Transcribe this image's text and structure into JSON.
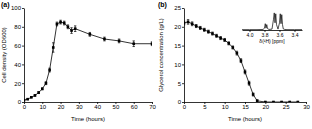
{
  "chart_data": [
    {
      "type": "line",
      "title": "(a)",
      "x_label": "Time (hours)",
      "y_label": "Cell density (OD600)",
      "x": [
        0,
        2,
        4,
        6,
        8,
        10,
        12,
        14,
        16,
        18,
        20,
        22,
        24,
        26,
        28,
        36,
        44,
        52,
        60,
        70
      ],
      "values": [
        2,
        3,
        5,
        7,
        10,
        14,
        20,
        34,
        58,
        83,
        85,
        84,
        80,
        76,
        78,
        72,
        67,
        65,
        62,
        62
      ],
      "errors": [
        0.5,
        0.5,
        0.5,
        0.8,
        1,
        1,
        1.5,
        2,
        5,
        2,
        2,
        2,
        2,
        3,
        3,
        2,
        2,
        2,
        3,
        2
      ],
      "xlim": [
        0,
        70
      ],
      "xticks": [
        0,
        10,
        20,
        30,
        40,
        50,
        60,
        70
      ],
      "ylim": [
        0,
        100
      ],
      "yticks": [
        0,
        20,
        40,
        60,
        80,
        100
      ],
      "color": "#000000",
      "marker": "square",
      "line_style": "solid"
    },
    {
      "type": "line",
      "title": "(b)",
      "x_label": "Time (hours)",
      "y_label": "Glycerol concentration (g/L)",
      "x": [
        0,
        1,
        2,
        3,
        4,
        5,
        6,
        7,
        8,
        9,
        10,
        11,
        12,
        13,
        14,
        15,
        16,
        17,
        18,
        20,
        22,
        24,
        26,
        28
      ],
      "values": [
        21,
        21.3,
        20.8,
        20.2,
        19.7,
        19.2,
        18.7,
        18.2,
        17.6,
        17.0,
        16.5,
        15.6,
        14.5,
        13.0,
        11.0,
        8.0,
        5.0,
        2.0,
        0.3,
        0,
        0,
        0,
        0,
        0
      ],
      "errors": [
        0.5,
        0.6,
        0.5,
        0.4,
        0.4,
        0.4,
        0.4,
        0.4,
        0.4,
        0.4,
        0.4,
        0.4,
        0.4,
        0.5,
        0.5,
        0.5,
        0.5,
        0.4,
        0.3,
        0.1,
        0.1,
        0.1,
        0.1,
        0.1
      ],
      "xlim": [
        0,
        30
      ],
      "xticks": [
        0,
        5,
        10,
        15,
        20,
        25,
        30
      ],
      "ylim": [
        0,
        25
      ],
      "yticks": [
        0,
        5,
        10,
        15,
        20,
        25
      ],
      "color": "#000000",
      "marker": "square",
      "line_style": "solid"
    },
    {
      "type": "line",
      "x_label": "δ(¹H) [ppm]",
      "x": [
        4.1,
        4.0,
        3.9,
        3.82,
        3.8,
        3.79,
        3.78,
        3.77,
        3.76,
        3.74,
        3.7,
        3.68,
        3.67,
        3.66,
        3.65,
        3.64,
        3.62,
        3.6,
        3.59,
        3.58,
        3.57,
        3.56,
        3.55,
        3.53,
        3.5,
        3.4,
        3.3
      ],
      "values": [
        0.02,
        0.02,
        0.02,
        0.03,
        0.1,
        0.35,
        0.1,
        0.3,
        0.08,
        0.03,
        0.05,
        0.6,
        0.95,
        0.4,
        0.9,
        0.3,
        0.05,
        0.4,
        0.9,
        0.35,
        0.85,
        0.3,
        0.06,
        0.03,
        0.02,
        0.02,
        0.02
      ],
      "xlim": [
        4.1,
        3.3
      ],
      "xticks": [
        {
          "value": 4,
          "label": "4.0"
        },
        3.8,
        3.6,
        3.4
      ],
      "ylim": [
        0,
        1
      ],
      "tick_labels": "x",
      "color": "#000000",
      "marker": "none",
      "line_style": "solid"
    }
  ]
}
